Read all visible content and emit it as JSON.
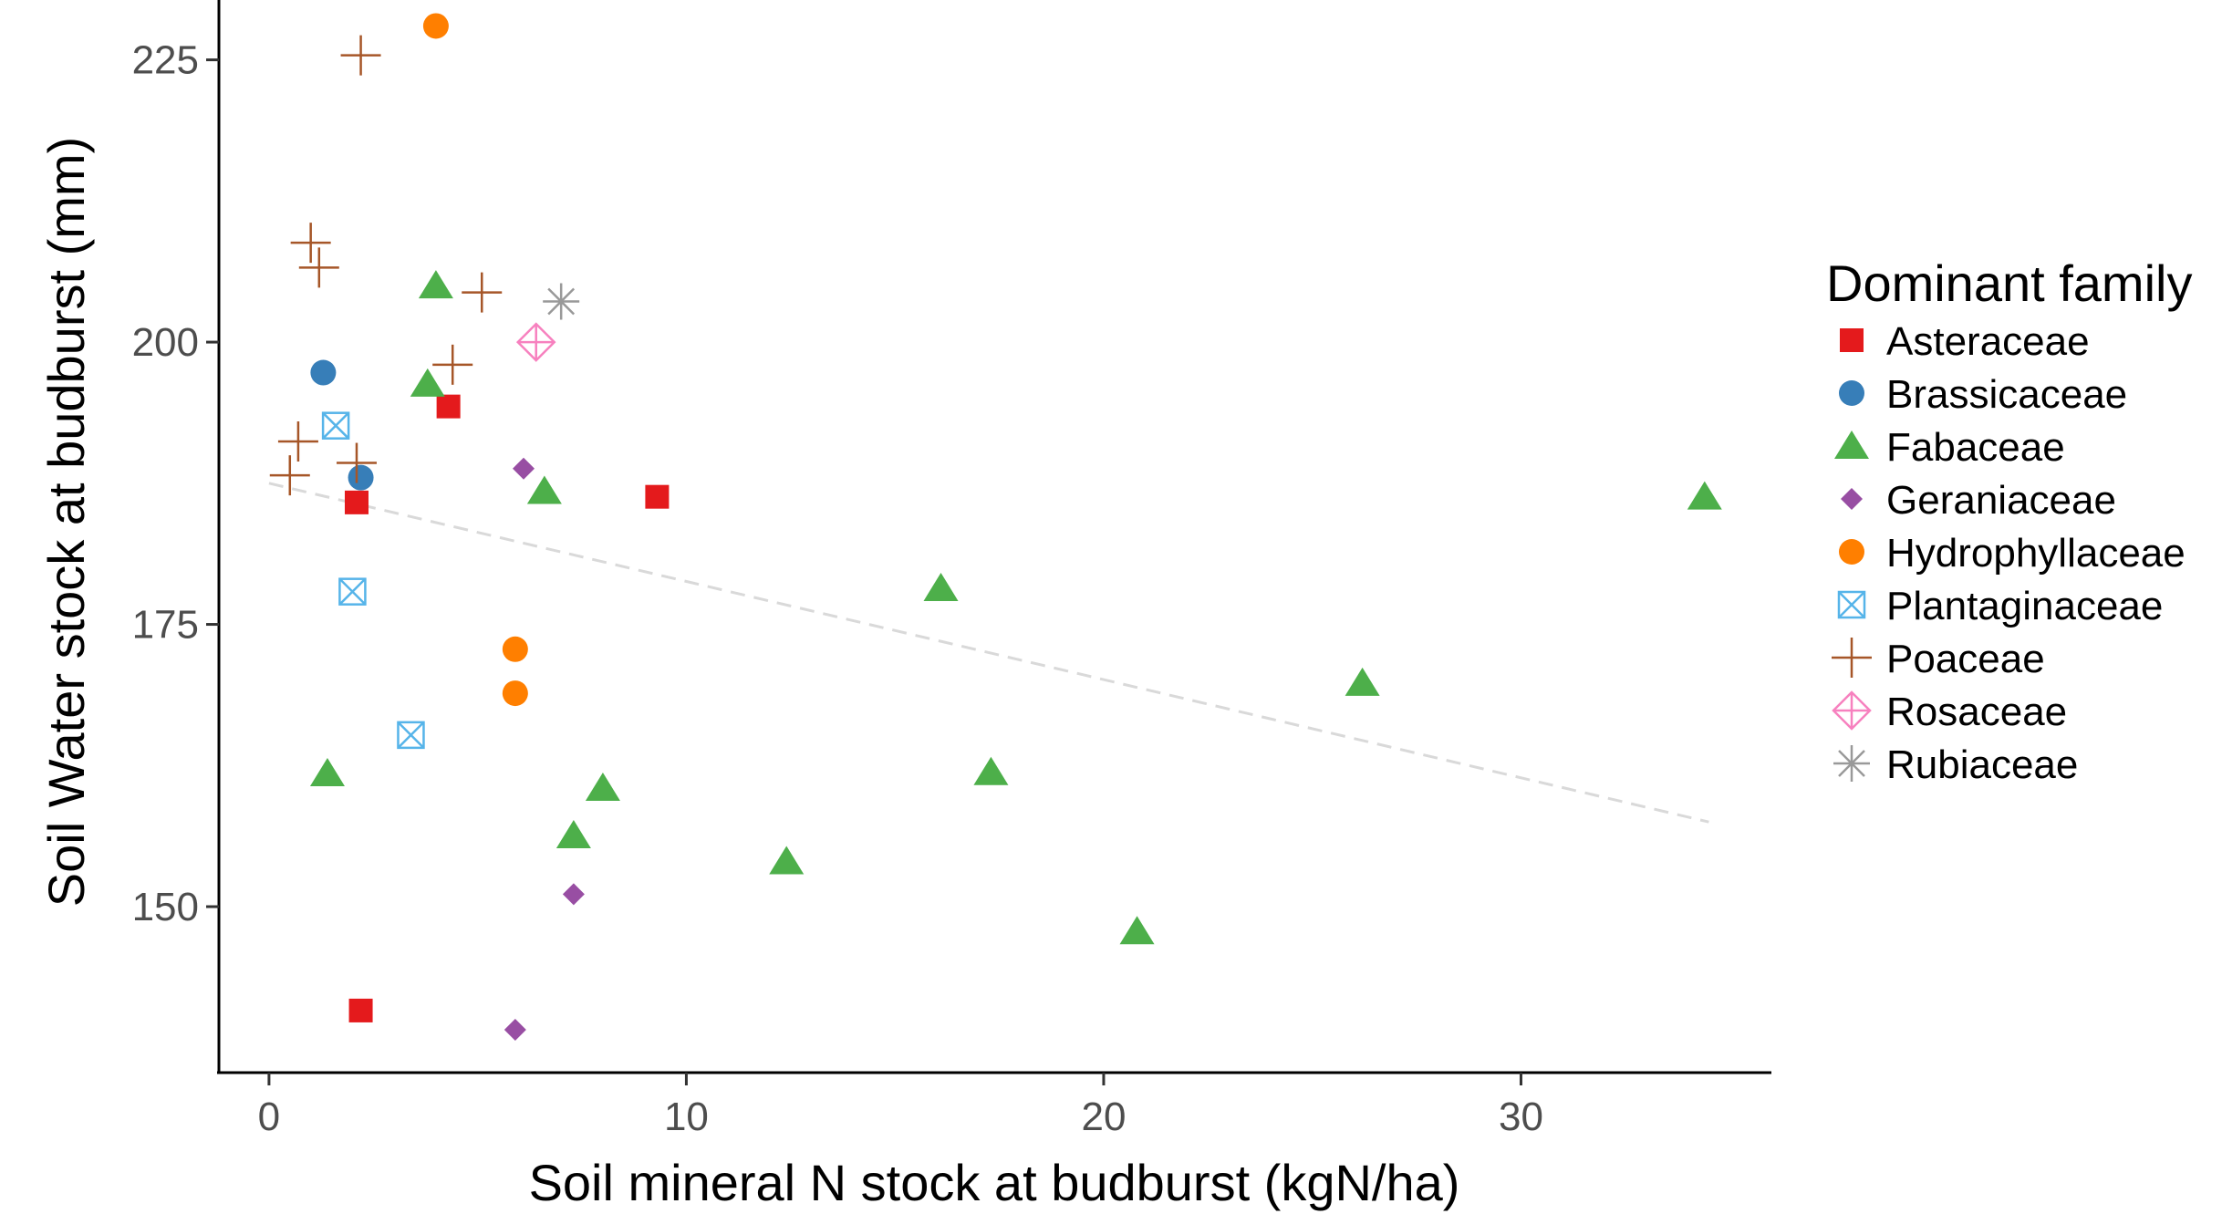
{
  "chart_data": {
    "type": "scatter",
    "title": "",
    "xlabel": "Soil mineral N stock at budburst (kgN/ha)",
    "ylabel": "Soil Water stock at budburst (mm)",
    "xlim": [
      -1.2,
      36.0
    ],
    "ylim": [
      135.3,
      230.3
    ],
    "x_ticks": [
      0,
      10,
      20,
      30
    ],
    "y_ticks": [
      150,
      175,
      200,
      225
    ],
    "grid": false,
    "legend": {
      "title": "Dominant family",
      "position": "right"
    },
    "trendline": {
      "x": [
        0,
        34.5
      ],
      "y": [
        187.5,
        157.5
      ],
      "style": "dashed",
      "color": "#d9d9d9"
    },
    "series": [
      {
        "name": "Asteraceae",
        "marker": "square",
        "color": "#e41a1c",
        "points": [
          [
            2.1,
            185.8
          ],
          [
            4.3,
            194.3
          ],
          [
            9.3,
            186.3
          ],
          [
            2.2,
            140.8
          ]
        ]
      },
      {
        "name": "Brassicaceae",
        "marker": "circle",
        "color": "#377eb8",
        "points": [
          [
            1.3,
            197.3
          ],
          [
            2.2,
            188.0
          ]
        ]
      },
      {
        "name": "Fabaceae",
        "marker": "triangle",
        "color": "#4daf4a",
        "points": [
          [
            4.0,
            205.0
          ],
          [
            3.8,
            196.3
          ],
          [
            6.6,
            186.8
          ],
          [
            34.4,
            186.3
          ],
          [
            16.1,
            178.2
          ],
          [
            26.2,
            169.8
          ],
          [
            1.4,
            161.8
          ],
          [
            8.0,
            160.5
          ],
          [
            17.3,
            161.9
          ],
          [
            7.3,
            156.3
          ],
          [
            12.4,
            154.0
          ],
          [
            20.8,
            147.8
          ]
        ]
      },
      {
        "name": "Geraniaceae",
        "marker": "diamond",
        "color": "#984ea3",
        "points": [
          [
            6.1,
            188.8
          ],
          [
            7.3,
            151.1
          ],
          [
            5.9,
            139.1
          ]
        ]
      },
      {
        "name": "Hydrophyllaceae",
        "marker": "circle",
        "color": "#ff7f00",
        "points": [
          [
            4.0,
            228.0
          ],
          [
            5.9,
            172.8
          ],
          [
            5.9,
            168.9
          ]
        ]
      },
      {
        "name": "Plantaginaceae",
        "marker": "square-x",
        "color": "#56b4e9",
        "points": [
          [
            1.6,
            192.6
          ],
          [
            2.0,
            177.9
          ],
          [
            3.4,
            165.2
          ]
        ]
      },
      {
        "name": "Poaceae",
        "marker": "plus",
        "color": "#a65628",
        "points": [
          [
            2.2,
            225.4
          ],
          [
            1.0,
            208.8
          ],
          [
            1.2,
            206.6
          ],
          [
            5.1,
            204.4
          ],
          [
            4.4,
            198.0
          ],
          [
            0.7,
            191.2
          ],
          [
            2.1,
            189.3
          ],
          [
            0.5,
            188.2
          ]
        ]
      },
      {
        "name": "Rosaceae",
        "marker": "diamond-plus",
        "color": "#f781bf",
        "points": [
          [
            6.4,
            200.0
          ]
        ]
      },
      {
        "name": "Rubiaceae",
        "marker": "star",
        "color": "#999999",
        "points": [
          [
            7.0,
            203.6
          ]
        ]
      }
    ]
  }
}
